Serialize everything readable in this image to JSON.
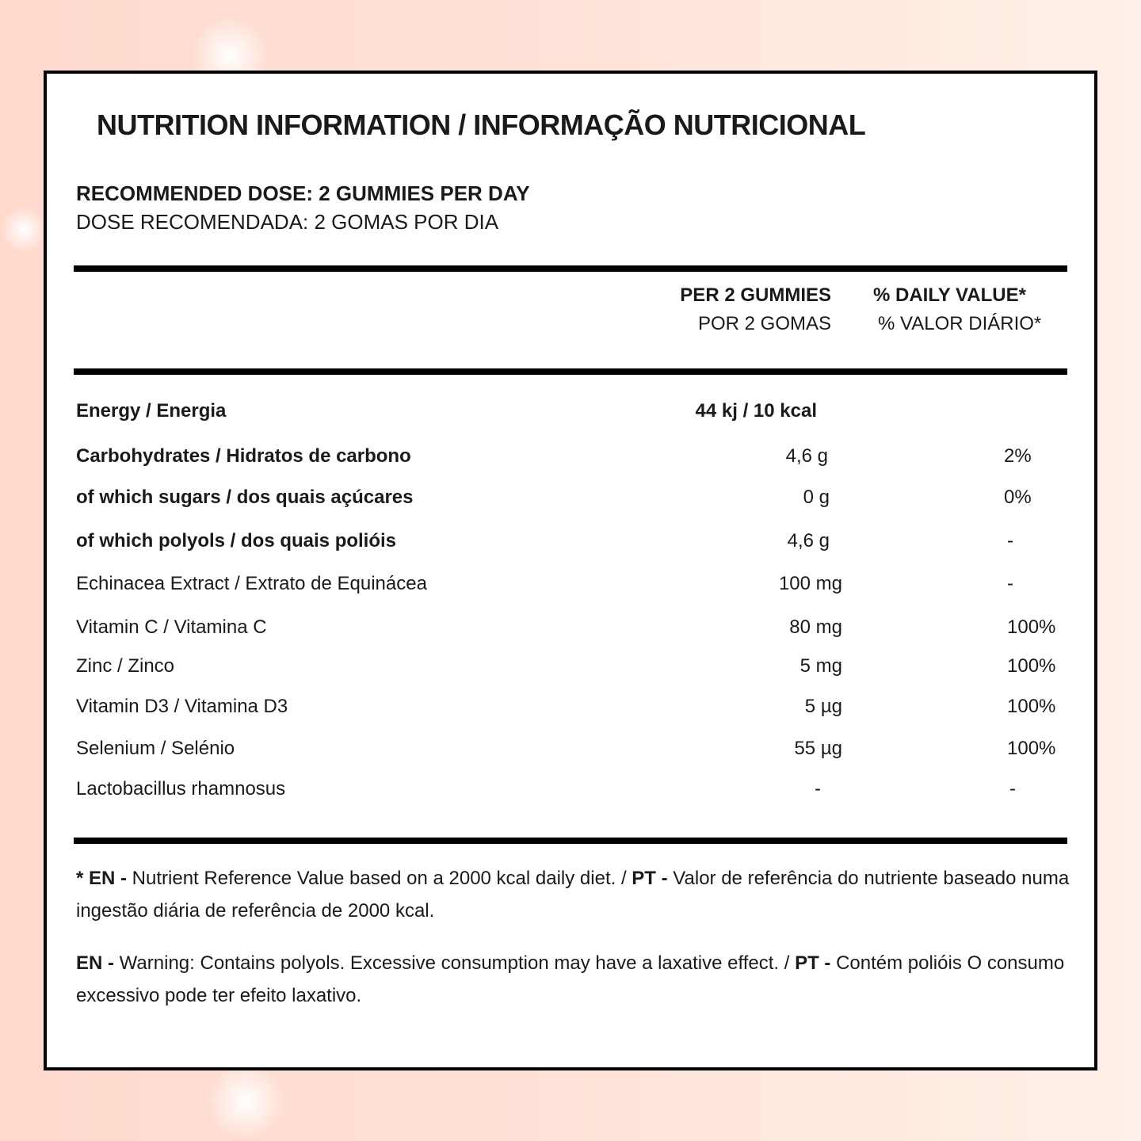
{
  "title": "NUTRITION INFORMATION / INFORMAÇÃO NUTRICIONAL",
  "dose": {
    "en": "RECOMMENDED DOSE: 2 GUMMIES PER DAY",
    "pt": "DOSE RECOMENDADA: 2 GOMAS POR DIA"
  },
  "header": {
    "per_en": "PER 2 GUMMIES",
    "per_pt": "POR 2 GOMAS",
    "dv_en": "% DAILY VALUE*",
    "dv_pt": "% VALOR DIÁRIO*"
  },
  "rows": [
    {
      "name": "Energy / Energia",
      "value": "44 kj / 10 kcal",
      "dv": ""
    },
    {
      "name": "Carbohydrates / Hidratos de carbono",
      "value": "4,6 g",
      "dv": "2%"
    },
    {
      "name": "of which sugars / dos quais açúcares",
      "value": "0 g",
      "dv": "0%"
    },
    {
      "name": "of which polyols / dos quais polióis",
      "value": "4,6 g",
      "dv": "-"
    },
    {
      "name": "Echinacea Extract / Extrato de Equinácea",
      "value": "100 mg",
      "dv": "-"
    },
    {
      "name": "Vitamin C / Vitamina C",
      "value": "80 mg",
      "dv": "100%"
    },
    {
      "name": "Zinc / Zinco",
      "value": "5 mg",
      "dv": "100%"
    },
    {
      "name": "Vitamin D3 / Vitamina D3",
      "value": "5 µg",
      "dv": "100%"
    },
    {
      "name": "Selenium / Selénio",
      "value": "55 µg",
      "dv": "100%"
    },
    {
      "name": "Lactobacillus rhamnosus",
      "value": "-",
      "dv": "-"
    }
  ],
  "footnotes": {
    "f1_star_en": "* EN -",
    "f1_en": " Nutrient Reference Value based on a 2000 kcal daily diet. / ",
    "f1_pt_label": "PT -",
    "f1_pt": " Valor de referência do nutriente baseado numa ingestão diária de referência de 2000 kcal.",
    "f2_en_label": "EN -",
    "f2_en": " Warning: Contains polyols. Excessive consumption may have a laxative effect. / ",
    "f2_pt_label": "PT -",
    "f2_pt": " Contém polióis O consumo excessivo pode ter efeito laxativo."
  }
}
